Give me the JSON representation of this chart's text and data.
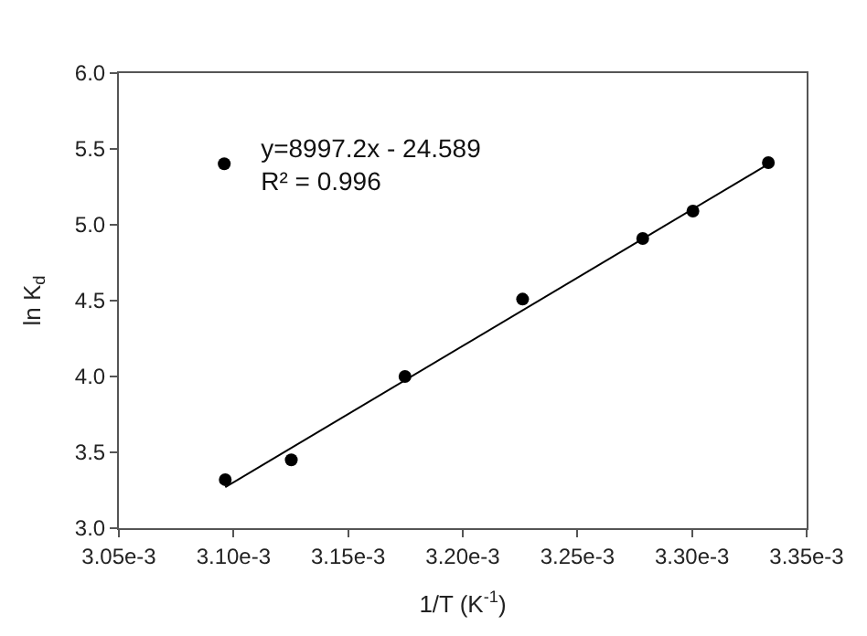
{
  "chart_data": {
    "type": "scatter",
    "xlabel": "1/T (K$^{-1}$)",
    "ylabel": "ln K$_{d}$",
    "x": [
      0.0030964,
      0.0031252,
      0.0031748,
      0.0032261,
      0.0032785,
      0.0033004,
      0.0033333
    ],
    "series": [
      {
        "name": "y=8997.2x - 24.589\nR² = 0.996",
        "color": "#000000",
        "marker": "circle",
        "values": [
          3.32,
          3.45,
          4.0,
          4.51,
          4.91,
          5.09,
          5.41
        ]
      },
      {
        "type": "line",
        "marker": "none",
        "color": "#000000",
        "x": [
          0.0030964,
          0.0033333
        ],
        "values": [
          3.27,
          5.4
        ]
      }
    ],
    "xlim": [
      0.00305,
      0.00335
    ],
    "xticks": [
      {
        "value": 0.00305,
        "label": "3.05e-3"
      },
      {
        "value": 0.0031,
        "label": "3.10e-3"
      },
      {
        "value": 0.00315,
        "label": "3.15e-3"
      },
      {
        "value": 0.0032,
        "label": "3.20e-3"
      },
      {
        "value": 0.00325,
        "label": "3.25e-3"
      },
      {
        "value": 0.0033,
        "label": "3.30e-3"
      },
      {
        "value": 0.00335,
        "label": "3.35e-3"
      }
    ],
    "ylim": [
      3.0,
      6.0
    ],
    "yticks": [
      {
        "value": 3,
        "label": "3.0"
      },
      {
        "value": 3.5,
        "label": "3.5"
      },
      {
        "value": 4,
        "label": "4.0"
      },
      {
        "value": 4.5,
        "label": "4.5"
      },
      {
        "value": 5,
        "label": "5.0"
      },
      {
        "value": 5.5,
        "label": "5.5"
      },
      {
        "value": 6,
        "label": "6.0"
      }
    ],
    "legend": "top left",
    "line_style": "solid"
  }
}
